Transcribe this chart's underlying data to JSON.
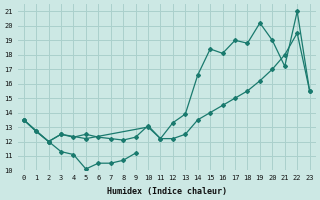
{
  "xlabel": "Humidex (Indice chaleur)",
  "bg_color": "#cce8e4",
  "grid_color": "#aad0cc",
  "line_color": "#1a7a6e",
  "xlim": [
    -0.5,
    23.5
  ],
  "ylim": [
    10,
    21.5
  ],
  "yticks": [
    10,
    11,
    12,
    13,
    14,
    15,
    16,
    17,
    18,
    19,
    20,
    21
  ],
  "xticks": [
    0,
    1,
    2,
    3,
    4,
    5,
    6,
    7,
    8,
    9,
    10,
    11,
    12,
    13,
    14,
    15,
    16,
    17,
    18,
    19,
    20,
    21,
    22,
    23
  ],
  "line1_x": [
    0,
    1,
    2,
    3,
    4,
    5,
    6,
    7,
    8,
    9,
    10,
    11,
    12,
    13,
    14,
    15,
    16,
    17,
    18,
    19,
    20,
    21,
    22,
    23
  ],
  "line1_y": [
    13.5,
    12.7,
    12.0,
    12.5,
    12.3,
    12.5,
    12.3,
    12.2,
    12.1,
    12.3,
    13.1,
    12.2,
    13.3,
    13.9,
    16.6,
    18.4,
    18.1,
    19.0,
    18.8,
    20.2,
    19.0,
    17.2,
    21.0,
    15.5
  ],
  "line2_x": [
    0,
    1,
    2,
    3,
    4,
    5,
    6,
    7,
    8,
    9
  ],
  "line2_y": [
    13.5,
    12.7,
    12.0,
    11.3,
    11.1,
    10.1,
    10.5,
    10.5,
    10.7,
    11.2
  ],
  "line3_x": [
    0,
    2,
    3,
    5,
    10,
    11,
    12,
    13,
    14,
    15,
    16,
    17,
    18,
    19,
    20,
    21,
    22,
    23
  ],
  "line3_y": [
    13.5,
    12.0,
    12.5,
    12.2,
    13.0,
    12.2,
    12.2,
    12.5,
    13.5,
    14.0,
    14.5,
    15.0,
    15.5,
    16.2,
    17.0,
    18.0,
    19.5,
    15.5
  ]
}
